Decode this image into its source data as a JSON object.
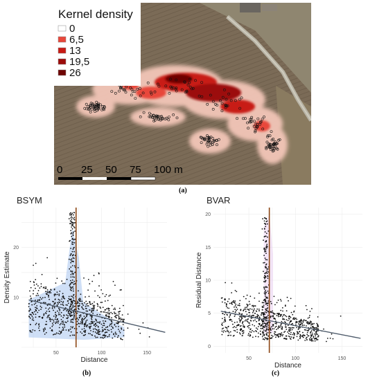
{
  "figure_a": {
    "legend_title": "Kernel density",
    "legend_items": [
      "0",
      "6,5",
      "13",
      "19,5",
      "26"
    ],
    "legend_colors": [
      "#ffffff",
      "#e8473a",
      "#c81b14",
      "#9c0c0a",
      "#6e0403"
    ],
    "scalebar_labels": [
      "0",
      "25",
      "50",
      "75",
      "100 m"
    ],
    "caption": "(a)"
  },
  "chart_data": [
    {
      "type": "scatter",
      "title": "BSYM",
      "xlabel": "Distance",
      "ylabel": "Density Estimate",
      "xlim": [
        12,
        172
      ],
      "ylim": [
        0,
        28
      ],
      "xticks": [
        50,
        100,
        150
      ],
      "yticks": [
        10,
        20
      ],
      "vline_x": 72,
      "trend_line": {
        "x": [
          20,
          170
        ],
        "y": [
          9.5,
          3.0
        ]
      },
      "point_count": 900,
      "caption": "(b)"
    },
    {
      "type": "scatter",
      "title": "BVAR",
      "xlabel": "Distance",
      "ylabel": "Residual Distance",
      "xlim": [
        12,
        172
      ],
      "ylim": [
        -1,
        21
      ],
      "xticks": [
        50,
        100,
        150
      ],
      "yticks": [
        0,
        5,
        10,
        15,
        20
      ],
      "vline_x": 72,
      "trend_line": {
        "x": [
          20,
          170
        ],
        "y": [
          5.3,
          1.2
        ]
      },
      "point_count": 900,
      "caption": "(c)"
    }
  ],
  "colors": {
    "field": "#7a6a55",
    "vline": "#8b4513",
    "trend": "#4d5a6a",
    "ribbon": "#a8c4ee"
  }
}
